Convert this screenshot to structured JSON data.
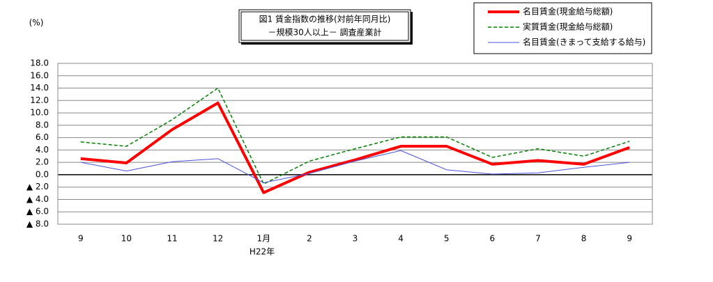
{
  "chart_data": {
    "type": "line",
    "title": "図1 賃金指数の推移(対前年同月比)",
    "subtitle": "－規模30人以上－ 調査産業計",
    "y_label": "(%)",
    "annotation": "H22年",
    "categories": [
      "9",
      "10",
      "11",
      "12",
      "1月",
      "2",
      "3",
      "4",
      "5",
      "6",
      "7",
      "8",
      "9"
    ],
    "series": [
      {
        "name": "名目賃金(現金給与総額)",
        "color": "#ff0000",
        "line_width": 4,
        "line_style": "solid",
        "values": [
          2.6,
          1.9,
          7.3,
          11.6,
          -2.9,
          0.4,
          2.4,
          4.6,
          4.6,
          1.7,
          2.3,
          1.7,
          4.4
        ]
      },
      {
        "name": "実質賃金(現金給与総額)",
        "color": "#008000",
        "line_width": 1.5,
        "line_style": "dashed",
        "values": [
          5.3,
          4.6,
          8.9,
          14.0,
          -1.5,
          2.2,
          4.2,
          6.1,
          6.1,
          2.8,
          4.2,
          3.0,
          5.4
        ]
      },
      {
        "name": "名目賃金(きまって支給する給与)",
        "color": "#4a52e0",
        "line_width": 1,
        "line_style": "solid",
        "values": [
          2.0,
          0.6,
          2.1,
          2.6,
          -1.3,
          0.2,
          2.2,
          3.9,
          0.8,
          0.1,
          0.3,
          1.2,
          2.0
        ]
      }
    ],
    "ylim": [
      -8,
      18
    ],
    "yticks": [
      {
        "value": -8,
        "label": "▲ 8.0"
      },
      {
        "value": -6,
        "label": "▲ 6.0"
      },
      {
        "value": -4,
        "label": "▲ 4.0"
      },
      {
        "value": -2,
        "label": "▲ 2.0"
      },
      {
        "value": 0,
        "label": "0.0"
      },
      {
        "value": 2,
        "label": "2.0"
      },
      {
        "value": 4,
        "label": "4.0"
      },
      {
        "value": 6,
        "label": "6.0"
      },
      {
        "value": 8,
        "label": "8.0"
      },
      {
        "value": 10,
        "label": "10.0"
      },
      {
        "value": 12,
        "label": "12.0"
      },
      {
        "value": 14,
        "label": "14.0"
      },
      {
        "value": 16,
        "label": "16.0"
      },
      {
        "value": 18,
        "label": "18.0"
      }
    ],
    "grid": true
  }
}
